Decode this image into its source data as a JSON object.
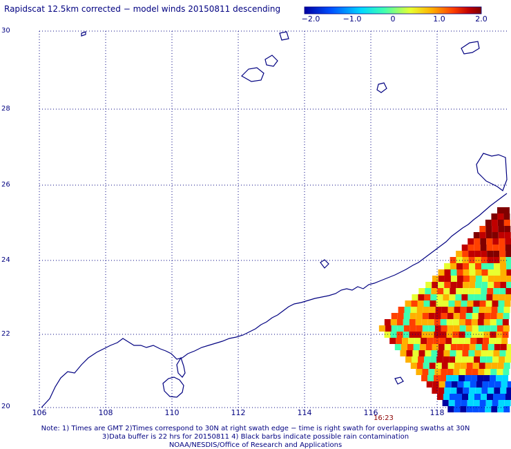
{
  "title": "Rapidscat 12.5km corrected − model winds 20150811 descending",
  "colorbar": {
    "labels": [
      "−2.0",
      "−1.0",
      "0",
      "1.0",
      "2.0"
    ],
    "colors": [
      "#0000a0",
      "#0050ff",
      "#00d8ff",
      "#40ffb0",
      "#e8ff30",
      "#ffb000",
      "#ff4000",
      "#c00000",
      "#800000"
    ]
  },
  "map": {
    "lat_labels": [
      "30",
      "28",
      "26",
      "24",
      "22",
      "20"
    ],
    "lon_labels": [
      "106",
      "108",
      "110",
      "112",
      "114",
      "116",
      "118"
    ],
    "coast_color": "#000080",
    "grid_style": "dotted",
    "swath_time": "16:23"
  },
  "notes": [
    "Note: 1) Times are GMT 2)Times correspond to 30N at right swath edge − time is right swath for overlapping swaths at 30N",
    "3)Data buffer is 22 hrs for 20150811 4) Black barbs indicate possible rain contamination",
    "NOAA/NESDIS/Office of Research and Applications"
  ]
}
